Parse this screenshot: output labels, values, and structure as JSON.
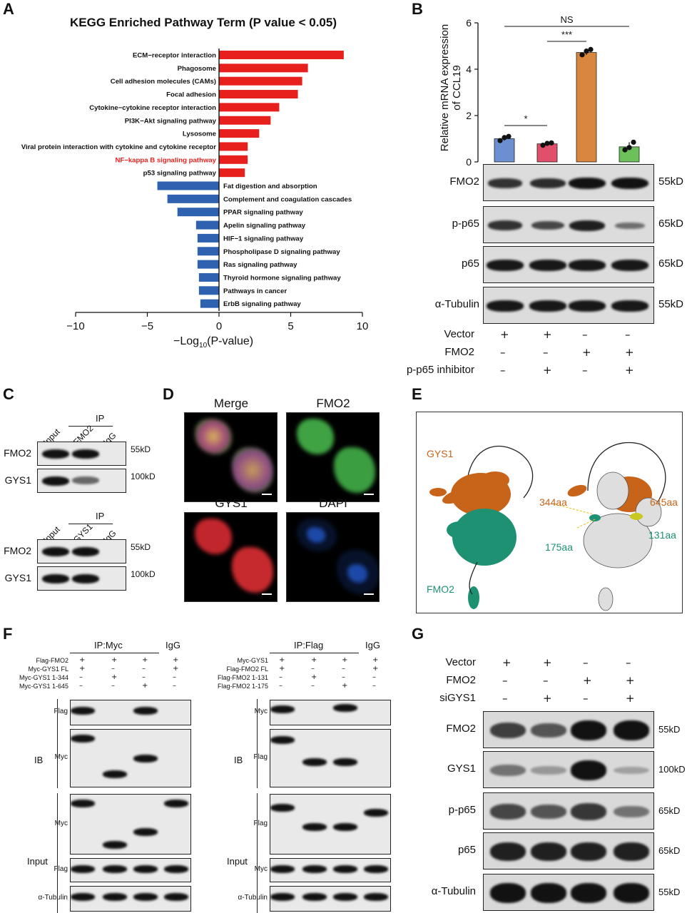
{
  "panels": {
    "A": "A",
    "B": "B",
    "C": "C",
    "D": "D",
    "E": "E",
    "F": "F",
    "G": "G"
  },
  "panelA": {
    "chart_data": {
      "type": "bar",
      "title": "KEGG Enriched Pathway Term (P value < 0.05)",
      "xlabel": "−Log10(P-value)",
      "xlim": [
        -10,
        10
      ],
      "xticks": [
        "−10",
        "−5",
        "0",
        "5",
        "10"
      ],
      "categories": [
        "ECM−receptor interaction",
        "Phagosome",
        "Cell adhesion molecules (CAMs)",
        "Focal adhesion",
        "Cytokine−cytokine receptor interaction",
        "PI3K−Akt signaling pathway",
        "Lysosome",
        "Viral protein interaction with cytokine and cytokine receptor",
        "NF−kappa B signaling pathway",
        "p53 signaling pathway",
        "Fat digestion and absorption",
        "Complement and coagulation cascades",
        "PPAR signaling pathway",
        "Apelin signaling pathway",
        "HIF−1 signaling pathway",
        "Phospholipase D signaling pathway",
        "Ras signaling pathway",
        "Thyroid hormone signaling pathway",
        "Pathways in cancer",
        "ErbB signaling pathway"
      ],
      "values": [
        8.7,
        6.2,
        5.8,
        5.5,
        4.2,
        3.6,
        2.8,
        2.0,
        2.0,
        1.8,
        -4.3,
        -3.6,
        -2.9,
        -1.6,
        -1.5,
        -1.5,
        -1.5,
        -1.4,
        -1.4,
        -1.3
      ],
      "highlight": "NF−kappa B signaling pathway",
      "colors": {
        "up": "#e8201d",
        "down": "#2e62b0",
        "highlight_text": "#e8201d"
      }
    },
    "xlabel_pre": "−Log",
    "xlabel_sub": "10",
    "xlabel_post": "(P-value)"
  },
  "panelB": {
    "chart_data": {
      "type": "bar",
      "ylabel": "Relative mRNA expression of CCL19",
      "ylim": [
        0,
        6
      ],
      "yticks": [
        "0",
        "2",
        "4",
        "6"
      ],
      "values": [
        1.0,
        0.78,
        4.72,
        0.65
      ],
      "points": [
        [
          0.92,
          1.05,
          1.1
        ],
        [
          0.72,
          0.8,
          0.82
        ],
        [
          4.62,
          4.78,
          4.85
        ],
        [
          0.52,
          0.62,
          0.85
        ]
      ],
      "colors": [
        "#6b8fd0",
        "#e0506a",
        "#d9873f",
        "#6cc15a"
      ],
      "significance": [
        {
          "from": 0,
          "to": 1,
          "label": "*"
        },
        {
          "from": 1,
          "to": 2,
          "label": "***"
        },
        {
          "from": 0,
          "to": 3,
          "label": "NS"
        }
      ]
    },
    "blots": [
      {
        "name": "FMO2",
        "kd": "55kD",
        "intensity": [
          0.75,
          0.8,
          1.0,
          1.0
        ]
      },
      {
        "name": "p-p65",
        "kd": "65kD",
        "intensity": [
          0.75,
          0.6,
          0.9,
          0.3
        ]
      },
      {
        "name": "p65",
        "kd": "65kD",
        "intensity": [
          0.95,
          0.95,
          0.95,
          0.95
        ]
      },
      {
        "name": "α-Tubulin",
        "kd": "55kD",
        "intensity": [
          0.95,
          0.95,
          0.95,
          0.95
        ]
      }
    ],
    "conditions": [
      {
        "label": "Vector",
        "signs": [
          "+",
          "+",
          "–",
          "–"
        ]
      },
      {
        "label": "FMO2",
        "signs": [
          "–",
          "–",
          "+",
          "+"
        ]
      },
      {
        "label": "p-p65 inhibitor",
        "signs": [
          "–",
          "+",
          "–",
          "+"
        ]
      }
    ]
  },
  "panelC": {
    "ip_label": "IP",
    "top": {
      "lanes": [
        "Input",
        "FMO2",
        "IgG"
      ],
      "rows": [
        {
          "name": "FMO2",
          "kd": "55kD"
        },
        {
          "name": "GYS1",
          "kd": "100kD"
        }
      ]
    },
    "bottom": {
      "lanes": [
        "Input",
        "GYS1",
        "IgG"
      ],
      "rows": [
        {
          "name": "FMO2",
          "kd": "55kD"
        },
        {
          "name": "GYS1",
          "kd": "100kD"
        }
      ]
    }
  },
  "panelD": {
    "titles": [
      "Merge",
      "FMO2",
      "GYS1",
      "DAPI"
    ]
  },
  "panelE": {
    "labels": {
      "gys1": "GYS1",
      "fmo2": "FMO2",
      "aa344": "344aa",
      "aa645": "645aa",
      "aa131": "131aa",
      "aa175": "175aa"
    },
    "colors": {
      "gys1": "#c8641a",
      "fmo2": "#1f9173"
    }
  },
  "panelF": {
    "left": {
      "ip_label": "IP:Myc",
      "igg": "IgG",
      "conditions": [
        {
          "label": "Flag-FMO2",
          "signs": [
            "+",
            "+",
            "+",
            "+"
          ]
        },
        {
          "label": "Myc-GYS1 FL",
          "signs": [
            "+",
            "–",
            "–",
            "+"
          ]
        },
        {
          "label": "Myc-GYS1 1-344",
          "signs": [
            "–",
            "+",
            "–",
            "–"
          ]
        },
        {
          "label": "Myc-GYS1 1-645",
          "signs": [
            "–",
            "–",
            "+",
            "–"
          ]
        }
      ],
      "rows": [
        "Flag",
        "Myc",
        "Myc",
        "Flag",
        "α-Tubulin"
      ]
    },
    "right": {
      "ip_label": "IP:Flag",
      "igg": "IgG",
      "conditions": [
        {
          "label": "Myc-GYS1",
          "signs": [
            "+",
            "+",
            "+",
            "+"
          ]
        },
        {
          "label": "Flag-FMO2 FL",
          "signs": [
            "+",
            "–",
            "–",
            "+"
          ]
        },
        {
          "label": "Flag-FMO2 1-131",
          "signs": [
            "–",
            "+",
            "–",
            "–"
          ]
        },
        {
          "label": "Flag-FMO2 1-175",
          "signs": [
            "–",
            "–",
            "+",
            "–"
          ]
        }
      ],
      "rows": [
        "Myc",
        "Flag",
        "Flag",
        "Myc",
        "α-Tubulin"
      ]
    },
    "group_ib": "IB",
    "group_input": "Input"
  },
  "panelG": {
    "conditions": [
      {
        "label": "Vector",
        "signs": [
          "+",
          "+",
          "–",
          "–"
        ]
      },
      {
        "label": "FMO2",
        "signs": [
          "–",
          "–",
          "+",
          "+"
        ]
      },
      {
        "label": "siGYS1",
        "signs": [
          "–",
          "+",
          "–",
          "+"
        ]
      }
    ],
    "blots": [
      {
        "name": "FMO2",
        "kd": "55kD"
      },
      {
        "name": "GYS1",
        "kd": "100kD"
      },
      {
        "name": "p-p65",
        "kd": "65kD"
      },
      {
        "name": "p65",
        "kd": "65kD"
      },
      {
        "name": "α-Tubulin",
        "kd": "55kD"
      }
    ]
  }
}
